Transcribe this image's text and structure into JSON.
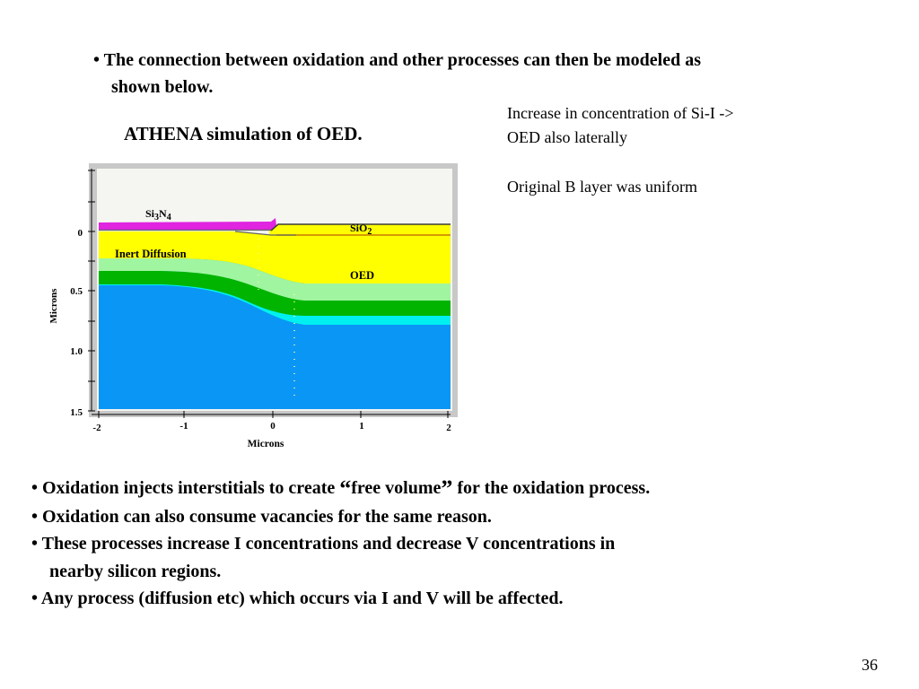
{
  "top_bullet": {
    "line1": "• The connection between oxidation and other processes can then be modeled as",
    "line2": "shown below."
  },
  "sim_title": "ATHENA simulation of OED.",
  "notes": {
    "line1": "Increase in concentration of Si-I ->",
    "line2": "OED also laterally",
    "line3": "Original B layer was uniform"
  },
  "figure": {
    "labels": {
      "si3n4_a": "Si",
      "si3n4_b": "3",
      "si3n4_c": "N",
      "si3n4_d": "4",
      "sio2_a": "SiO",
      "sio2_b": "2",
      "inert": "Inert Diffusion",
      "oed": "OED"
    },
    "y_axis_label": "Microns",
    "y_ticks": [
      "0",
      "0.5",
      "1.0",
      "1.5"
    ],
    "x_axis_label": "Microns",
    "x_ticks": [
      "-2",
      "-1",
      "0",
      "1",
      "2"
    ],
    "colors": {
      "panel_frame": "#c8c8c8",
      "background": "#f5f5f2",
      "nitride": "#e024e0",
      "oxide": "#ffff00",
      "silicon": "#0a96f5",
      "light_green": "#a0f5a0",
      "green": "#00b400",
      "cyan": "#00f0f0",
      "dark_line": "#646464"
    }
  },
  "bottom_bullets": {
    "b1_pre": "• Oxidation injects interstitials to create ",
    "b1_open_quote": "“",
    "b1_mid": "free volume",
    "b1_close_quote": "”",
    "b1_post": " for the oxidation process.",
    "b2": "• Oxidation can also consume vacancies for the same reason.",
    "b3_line1": "• These processes increase I concentrations and decrease V concentrations in",
    "b3_line2": "nearby silicon regions.",
    "b4": "• Any process (diffusion etc) which occurs via I and V will be affected."
  },
  "page_number": "36"
}
